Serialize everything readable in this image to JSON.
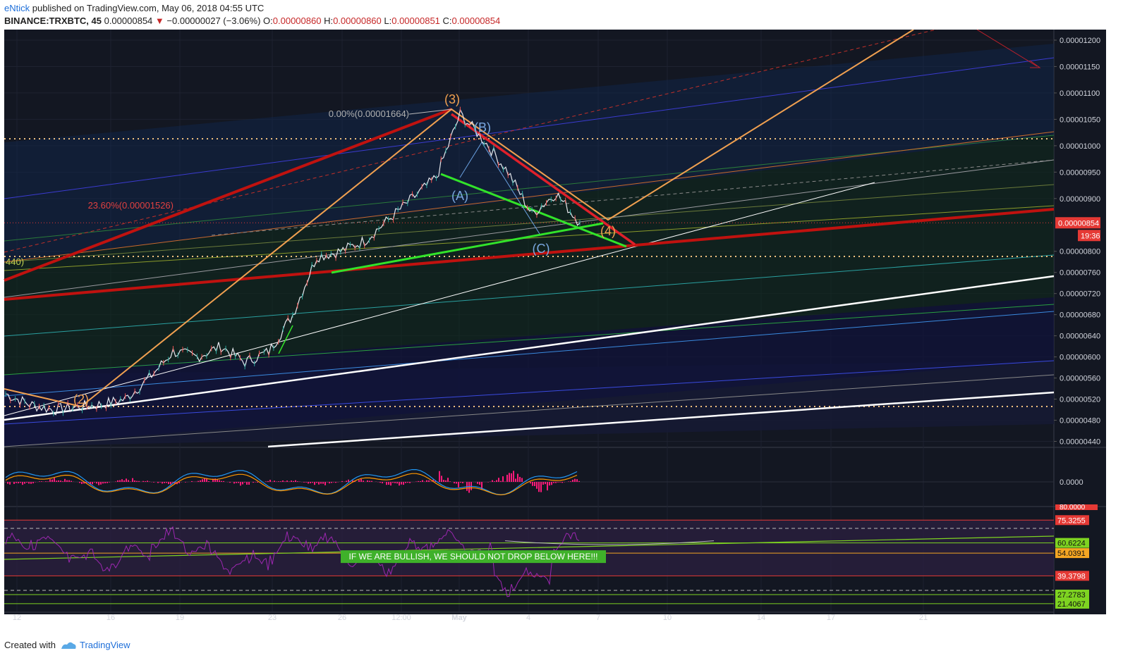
{
  "header": {
    "author": "eNtick",
    "published_text": "published on TradingView.com, May 06, 2018 04:55 UTC",
    "symbol": "BINANCE:TRXBTC, 45",
    "last": "0.00000854",
    "change": "−0.00000027 (−3.06%)",
    "o_label": "O:",
    "o_value": "0.00000860",
    "h_label": "H:",
    "h_value": "0.00000860",
    "l_label": "L:",
    "l_value": "0.00000851",
    "c_label": "C:",
    "c_value": "0.00000854"
  },
  "footer": {
    "created_with": "Created with",
    "brand": "TradingView"
  },
  "colors": {
    "background": "#131722",
    "axis_text": "#d1d4dc",
    "price_badge": "#e53935",
    "orange": "#f0a050",
    "red_line": "#c0120f",
    "green_line": "#32e32a",
    "white_line": "#ffffff",
    "rsi_line": "#9c27b0",
    "macd_blue": "#2196f3",
    "macd_orange": "#ff9800",
    "macd_hist": "#ff1a7a"
  },
  "chart_data": {
    "type": "line",
    "title": "",
    "x_ticks": [
      "12",
      "16",
      "19",
      "23",
      "26",
      "12:00",
      "May",
      "4",
      "7",
      "10",
      "14",
      "17",
      "21"
    ],
    "y_ticks": [
      "0.00001200",
      "0.00001150",
      "0.00001100",
      "0.00001050",
      "0.00001000",
      "0.00000950",
      "0.00000900",
      "0.00000800",
      "0.00000760",
      "0.00000720",
      "0.00000680",
      "0.00000640",
      "0.00000600",
      "0.00000560",
      "0.00000520",
      "0.00000480",
      "0.00000440"
    ],
    "ylim": [
      4.3e-06,
      1.22e-05
    ],
    "current_price": "0.00000854",
    "countdown": "19:36",
    "price_series": [
      [
        "12",
        5.3e-06
      ],
      [
        "13",
        5.1e-06
      ],
      [
        "14",
        5e-06
      ],
      [
        "15",
        5.05e-06
      ],
      [
        "16",
        5.1e-06
      ],
      [
        "17",
        5.2e-06
      ],
      [
        "18",
        5.6e-06
      ],
      [
        "19",
        6.1e-06
      ],
      [
        "20",
        6e-06
      ],
      [
        "21",
        6.2e-06
      ],
      [
        "22",
        5.9e-06
      ],
      [
        "23",
        6.1e-06
      ],
      [
        "24",
        6.8e-06
      ],
      [
        "25",
        7.9e-06
      ],
      [
        "26",
        8e-06
      ],
      [
        "27",
        8.2e-06
      ],
      [
        "28",
        8.6e-06
      ],
      [
        "29",
        9e-06
      ],
      [
        "30",
        9.4e-06
      ],
      [
        "May",
        1.06e-05
      ],
      [
        "2",
        1.01e-05
      ],
      [
        "3",
        9.5e-06
      ],
      [
        "4",
        8.7e-06
      ],
      [
        "5",
        9.1e-06
      ],
      [
        "6",
        8.54e-06
      ]
    ],
    "wave_labels": [
      "(3)",
      "(B)",
      "(A)",
      "(C)",
      "(2)",
      "(4)"
    ],
    "fib_labels": [
      "0.00%(0.00001664)",
      "23.60%(0.00001526)",
      "440)"
    ],
    "annotation": "IF WE ARE BULLISH, WE SHOULD NOT DROP BELOW HERE!!!",
    "macd": {
      "zero_label": "0.0000"
    },
    "rsi": {
      "top_label": "80.0000",
      "levels": [
        "75.3255",
        "60.6224",
        "54.0391",
        "39.3798",
        "27.2783",
        "21.4067"
      ],
      "level_values": [
        75.3255,
        60.6224,
        54.0391,
        39.3798,
        27.2783,
        21.4067
      ]
    }
  }
}
